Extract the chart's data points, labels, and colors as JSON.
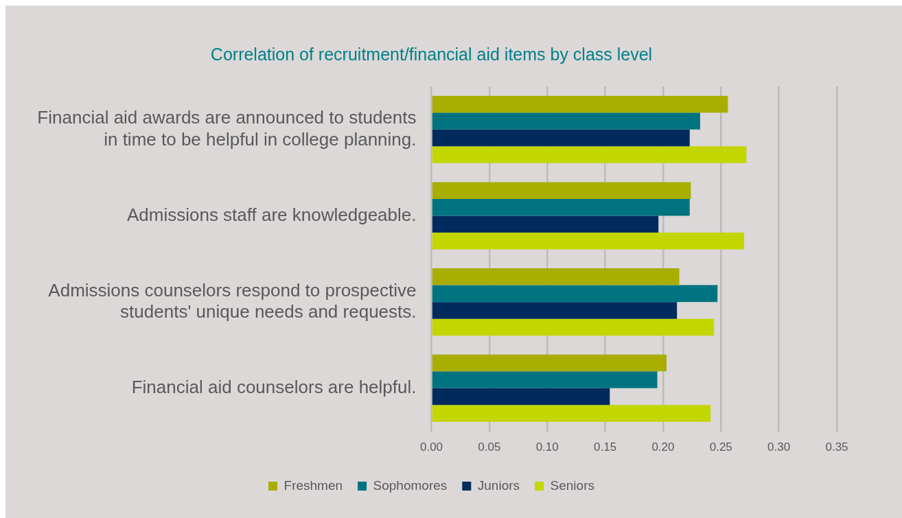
{
  "chart_data": {
    "type": "bar",
    "orientation": "horizontal",
    "title": "Correlation of recruitment/financial aid items by class level",
    "categories": [
      "Financial aid awards are announced to students in time to be helpful in college planning.",
      "Admissions staff are knowledgeable.",
      "Admissions counselors respond to prospective students' unique needs and requests.",
      "Financial aid counselors are helpful."
    ],
    "series": [
      {
        "name": "Freshmen",
        "color": "#a8ad00",
        "values": [
          0.256,
          0.224,
          0.214,
          0.203
        ]
      },
      {
        "name": "Sophomores",
        "color": "#007380",
        "values": [
          0.232,
          0.223,
          0.247,
          0.195
        ]
      },
      {
        "name": "Juniors",
        "color": "#002b5c",
        "values": [
          0.223,
          0.196,
          0.212,
          0.154
        ]
      },
      {
        "name": "Seniors",
        "color": "#c4d600",
        "values": [
          0.272,
          0.27,
          0.244,
          0.241
        ]
      }
    ],
    "xlim": [
      0,
      0.35
    ],
    "xticks": [
      {
        "value": 0,
        "label": "0.00"
      },
      {
        "value": 0.05,
        "label": "0.05"
      },
      {
        "value": 0.1,
        "label": "0.10"
      },
      {
        "value": 0.15,
        "label": "0.15"
      },
      {
        "value": 0.2,
        "label": "0.20"
      },
      {
        "value": 0.25,
        "label": "0.25"
      },
      {
        "value": 0.3,
        "label": "0.30"
      },
      {
        "value": 0.35,
        "label": "0.35"
      }
    ],
    "grid": "x",
    "legend": "bottom"
  }
}
